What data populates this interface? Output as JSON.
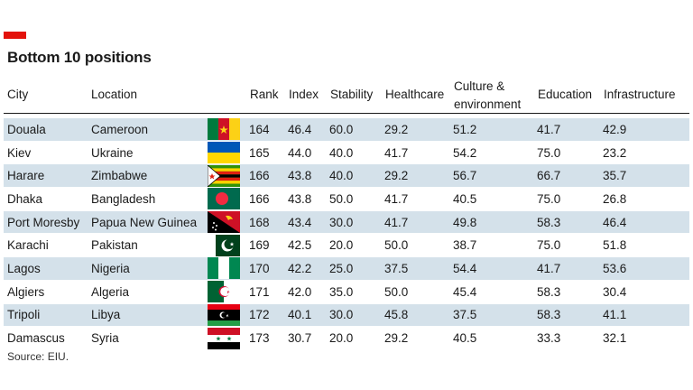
{
  "title": "Bottom 10 positions",
  "source": "Source: EIU.",
  "columns": {
    "city": "City",
    "location": "Location",
    "rank": "Rank",
    "index": "Index",
    "stability": "Stability",
    "healthcare": "Healthcare",
    "culture_line1": "Culture &",
    "culture_line2": "environment",
    "education": "Education",
    "infrastructure": "Infrastructure"
  },
  "colors": {
    "accent": "#e3120b",
    "row_band": "#d4e1ea"
  },
  "chart_data": {
    "type": "table",
    "title": "Bottom 10 positions",
    "columns": [
      "City",
      "Location",
      "Rank",
      "Index",
      "Stability",
      "Healthcare",
      "Culture & environment",
      "Education",
      "Infrastructure"
    ],
    "rows": [
      {
        "city": "Douala",
        "location": "Cameroon",
        "flag": "cameroon-flag-icon",
        "rank": "164",
        "index": "46.4",
        "stability": "60.0",
        "healthcare": "29.2",
        "culture": "51.2",
        "education": "41.7",
        "infrastructure": "42.9"
      },
      {
        "city": "Kiev",
        "location": "Ukraine",
        "flag": "ukraine-flag-icon",
        "rank": "165",
        "index": "44.0",
        "stability": "40.0",
        "healthcare": "41.7",
        "culture": "54.2",
        "education": "75.0",
        "infrastructure": "23.2"
      },
      {
        "city": "Harare",
        "location": "Zimbabwe",
        "flag": "zimbabwe-flag-icon",
        "rank": "166",
        "index": "43.8",
        "stability": "40.0",
        "healthcare": "29.2",
        "culture": "56.7",
        "education": "66.7",
        "infrastructure": "35.7"
      },
      {
        "city": "Dhaka",
        "location": "Bangladesh",
        "flag": "bangladesh-flag-icon",
        "rank": "166",
        "index": "43.8",
        "stability": "50.0",
        "healthcare": "41.7",
        "culture": "40.5",
        "education": "75.0",
        "infrastructure": "26.8"
      },
      {
        "city": "Port Moresby",
        "location": "Papua New Guinea",
        "flag": "papua-new-guinea-flag-icon",
        "rank": "168",
        "index": "43.4",
        "stability": "30.0",
        "healthcare": "41.7",
        "culture": "49.8",
        "education": "58.3",
        "infrastructure": "46.4"
      },
      {
        "city": "Karachi",
        "location": "Pakistan",
        "flag": "pakistan-flag-icon",
        "rank": "169",
        "index": "42.5",
        "stability": "20.0",
        "healthcare": "50.0",
        "culture": "38.7",
        "education": "75.0",
        "infrastructure": "51.8"
      },
      {
        "city": "Lagos",
        "location": "Nigeria",
        "flag": "nigeria-flag-icon",
        "rank": "170",
        "index": "42.2",
        "stability": "25.0",
        "healthcare": "37.5",
        "culture": "54.4",
        "education": "41.7",
        "infrastructure": "53.6"
      },
      {
        "city": "Algiers",
        "location": "Algeria",
        "flag": "algeria-flag-icon",
        "rank": "171",
        "index": "42.0",
        "stability": "35.0",
        "healthcare": "50.0",
        "culture": "45.4",
        "education": "58.3",
        "infrastructure": "30.4"
      },
      {
        "city": "Tripoli",
        "location": "Libya",
        "flag": "libya-flag-icon",
        "rank": "172",
        "index": "40.1",
        "stability": "30.0",
        "healthcare": "45.8",
        "culture": "37.5",
        "education": "58.3",
        "infrastructure": "41.1"
      },
      {
        "city": "Damascus",
        "location": "Syria",
        "flag": "syria-flag-icon",
        "rank": "173",
        "index": "30.7",
        "stability": "20.0",
        "healthcare": "29.2",
        "culture": "40.5",
        "education": "33.3",
        "infrastructure": "32.1"
      }
    ]
  }
}
